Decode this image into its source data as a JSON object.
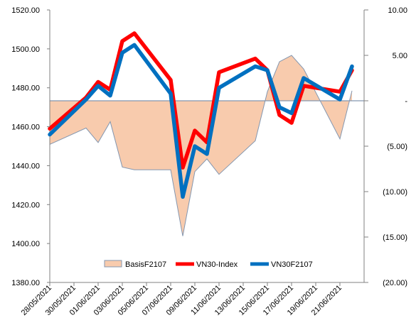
{
  "chart_data": {
    "type": "line",
    "title": "",
    "xlabel": "",
    "ylabel": "",
    "x": [
      "28/05/2021",
      "31/05/2021",
      "01/06/2021",
      "02/06/2021",
      "03/06/2021",
      "04/06/2021",
      "07/06/2021",
      "08/06/2021",
      "09/06/2021",
      "10/06/2021",
      "11/06/2021",
      "14/06/2021",
      "15/06/2021",
      "16/06/2021",
      "17/06/2021",
      "18/06/2021",
      "21/06/2021",
      "22/06/2021"
    ],
    "x_tick_labels": [
      "28/05/2021",
      "30/05/2021",
      "01/06/2021",
      "03/06/2021",
      "05/06/2021",
      "07/06/2021",
      "09/06/2021",
      "11/06/2021",
      "13/06/2021",
      "15/06/2021",
      "17/06/2021",
      "19/06/2021",
      "21/06/2021"
    ],
    "ylim": [
      1380,
      1520
    ],
    "y_tick_labels": [
      "1380.00",
      "1400.00",
      "1420.00",
      "1440.00",
      "1460.00",
      "1480.00",
      "1500.00",
      "1520.00"
    ],
    "y2lim": [
      -20,
      10
    ],
    "y2_tick_labels": [
      "(20.00)",
      "(15.00)",
      "(10.00)",
      "(5.00)",
      "-",
      "5.00",
      "10.00"
    ],
    "grid": false,
    "legend_position": "bottom",
    "series": [
      {
        "name": "BasisF2107",
        "kind": "area",
        "axis": "right",
        "color": "#f8cbad",
        "edge_color": "#8497b0",
        "points": [
          [
            "28/05/2021",
            -4.8
          ],
          [
            "31/05/2021",
            -3.0
          ],
          [
            "01/06/2021",
            -4.6
          ],
          [
            "02/06/2021",
            -2.3
          ],
          [
            "03/06/2021",
            -7.3
          ],
          [
            "04/06/2021",
            -7.6
          ],
          [
            "07/06/2021",
            -7.6
          ],
          [
            "08/06/2021",
            -14.9
          ],
          [
            "09/06/2021",
            -7.8
          ],
          [
            "10/06/2021",
            -6.4
          ],
          [
            "11/06/2021",
            -8.1
          ],
          [
            "14/06/2021",
            -4.4
          ],
          [
            "15/06/2021",
            1.0
          ],
          [
            "16/06/2021",
            4.3
          ],
          [
            "17/06/2021",
            5.0
          ],
          [
            "18/06/2021",
            3.5
          ],
          [
            "21/06/2021",
            -4.2
          ],
          [
            "22/06/2021",
            1.1
          ]
        ]
      },
      {
        "name": "VN30-Index",
        "kind": "line",
        "axis": "left",
        "color": "#ff0000",
        "points": [
          [
            "28/05/2021",
            1459
          ],
          [
            "31/05/2021",
            1475
          ],
          [
            "01/06/2021",
            1483
          ],
          [
            "02/06/2021",
            1479
          ],
          [
            "03/06/2021",
            1504
          ],
          [
            "04/06/2021",
            1508
          ],
          [
            "07/06/2021",
            1484
          ],
          [
            "08/06/2021",
            1439
          ],
          [
            "09/06/2021",
            1458
          ],
          [
            "10/06/2021",
            1452
          ],
          [
            "11/06/2021",
            1488
          ],
          [
            "14/06/2021",
            1495
          ],
          [
            "15/06/2021",
            1489
          ],
          [
            "16/06/2021",
            1466
          ],
          [
            "17/06/2021",
            1462
          ],
          [
            "18/06/2021",
            1481
          ],
          [
            "21/06/2021",
            1478
          ],
          [
            "22/06/2021",
            1489
          ]
        ]
      },
      {
        "name": "VN30F2107",
        "kind": "line",
        "axis": "left",
        "color": "#0070c0",
        "points": [
          [
            "28/05/2021",
            1456
          ],
          [
            "31/05/2021",
            1474
          ],
          [
            "01/06/2021",
            1481
          ],
          [
            "02/06/2021",
            1476
          ],
          [
            "03/06/2021",
            1498
          ],
          [
            "04/06/2021",
            1502
          ],
          [
            "07/06/2021",
            1477
          ],
          [
            "08/06/2021",
            1424
          ],
          [
            "09/06/2021",
            1450
          ],
          [
            "10/06/2021",
            1446
          ],
          [
            "11/06/2021",
            1480
          ],
          [
            "14/06/2021",
            1491
          ],
          [
            "15/06/2021",
            1489
          ],
          [
            "16/06/2021",
            1470
          ],
          [
            "17/06/2021",
            1467
          ],
          [
            "18/06/2021",
            1485
          ],
          [
            "21/06/2021",
            1474
          ],
          [
            "22/06/2021",
            1491
          ]
        ]
      }
    ]
  }
}
